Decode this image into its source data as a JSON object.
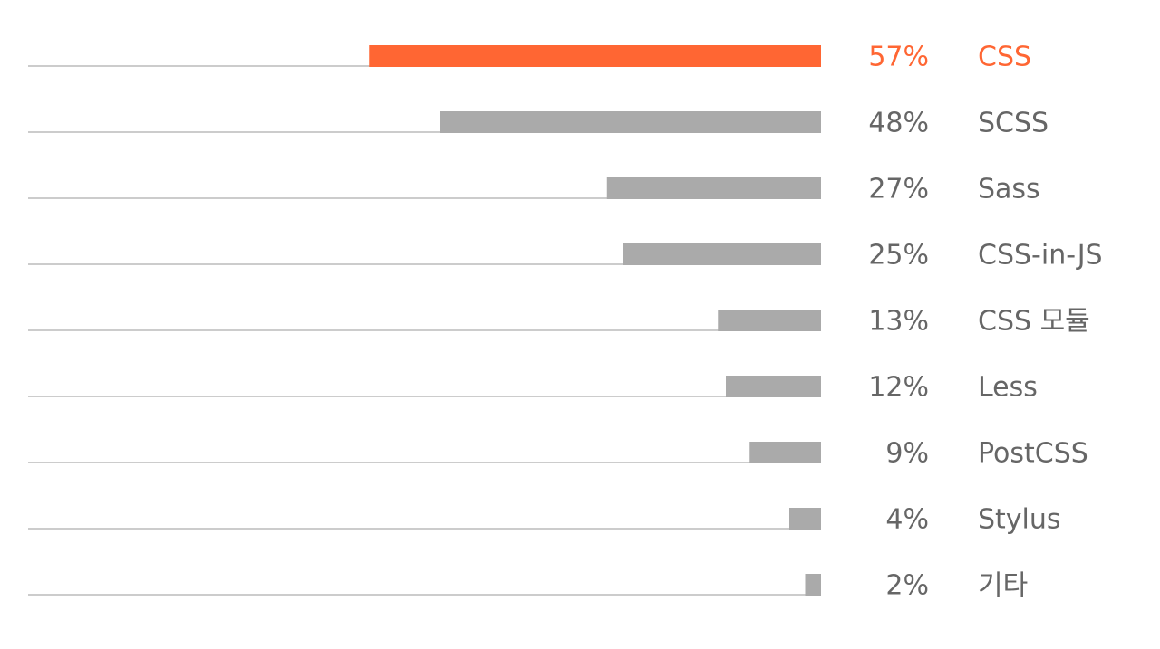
{
  "chart_data": {
    "type": "bar",
    "orientation": "horizontal",
    "direction": "right-to-left",
    "categories": [
      "CSS",
      "SCSS",
      "Sass",
      "CSS-in-JS",
      "CSS 모듈",
      "Less",
      "PostCSS",
      "Stylus",
      "기타"
    ],
    "values": [
      57,
      48,
      27,
      25,
      13,
      12,
      9,
      4,
      2
    ],
    "value_labels": [
      "57%",
      "48%",
      "27%",
      "25%",
      "13%",
      "12%",
      "9%",
      "4%",
      "2%"
    ],
    "colors": [
      "#ff6633",
      "#aaaaaa",
      "#aaaaaa",
      "#aaaaaa",
      "#aaaaaa",
      "#aaaaaa",
      "#aaaaaa",
      "#aaaaaa",
      "#aaaaaa"
    ],
    "label_colors": [
      "#ff6633",
      "#666666",
      "#666666",
      "#666666",
      "#666666",
      "#666666",
      "#666666",
      "#666666",
      "#666666"
    ],
    "xlim": [
      0,
      100
    ]
  }
}
